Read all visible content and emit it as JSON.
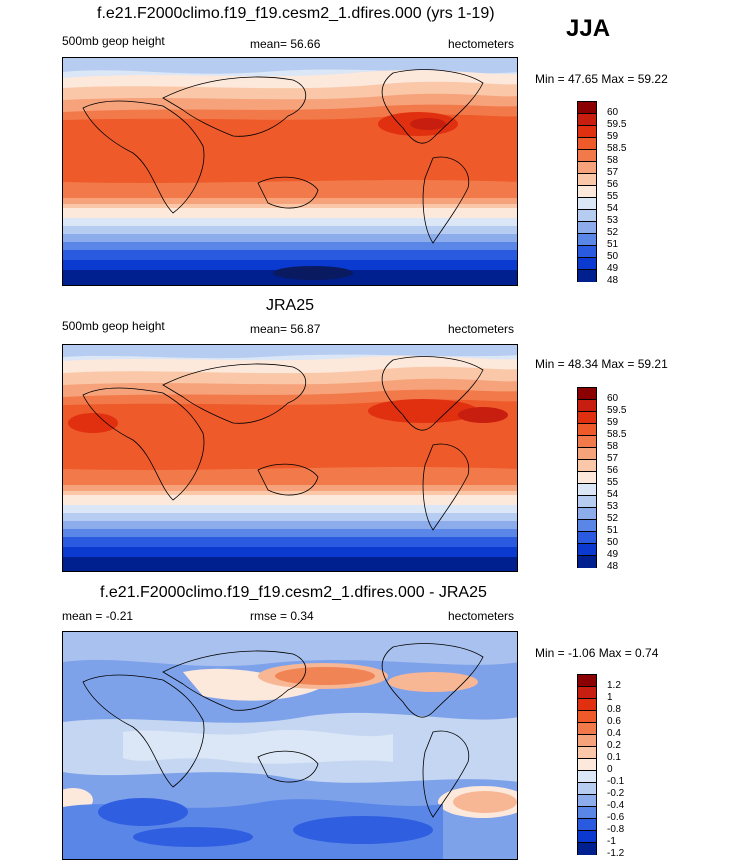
{
  "season": "JJA",
  "panels": [
    {
      "title": "f.e21.F2000climo.f19_f19.cesm2_1.dfires.000 (yrs 1-19)",
      "left_label": "500mb geop height",
      "mean_text": "mean=  56.66",
      "units": "hectometers",
      "minmax": "Min =  47.65 Max =  59.22",
      "levels": [
        "60",
        "59.5",
        "59",
        "58.5",
        "58",
        "57",
        "56",
        "55",
        "54",
        "53",
        "52",
        "51",
        "50",
        "49",
        "48"
      ]
    },
    {
      "title": "JRA25",
      "left_label": "500mb geop height",
      "mean_text": "mean=  56.87",
      "units": "hectometers",
      "minmax": "Min =  48.34 Max =  59.21",
      "levels": [
        "60",
        "59.5",
        "59",
        "58.5",
        "58",
        "57",
        "56",
        "55",
        "54",
        "53",
        "52",
        "51",
        "50",
        "49",
        "48"
      ]
    },
    {
      "title": "f.e21.F2000climo.f19_f19.cesm2_1.dfires.000 - JRA25",
      "left_label": "mean =  -0.21",
      "mean_text": "rmse =   0.34",
      "units": "hectometers",
      "minmax": "Min =  -1.06 Max =   0.74",
      "levels": [
        "1.2",
        "1",
        "0.8",
        "0.6",
        "0.4",
        "0.2",
        "0.1",
        "0",
        "-0.1",
        "-0.2",
        "-0.4",
        "-0.6",
        "-0.8",
        "-1",
        "-1.2"
      ]
    }
  ],
  "chart_data": [
    {
      "type": "heatmap",
      "title": "f.e21.F2000climo.f19_f19.cesm2_1.dfires.000 (yrs 1-19)",
      "variable": "500mb geop height",
      "units": "hectometers",
      "mean": 56.66,
      "min": 47.65,
      "max": 59.22,
      "contour_levels": [
        48,
        49,
        50,
        51,
        52,
        53,
        54,
        55,
        56,
        57,
        58,
        58.5,
        59,
        59.5,
        60
      ]
    },
    {
      "type": "heatmap",
      "title": "JRA25",
      "variable": "500mb geop height",
      "units": "hectometers",
      "mean": 56.87,
      "min": 48.34,
      "max": 59.21,
      "contour_levels": [
        48,
        49,
        50,
        51,
        52,
        53,
        54,
        55,
        56,
        57,
        58,
        58.5,
        59,
        59.5,
        60
      ]
    },
    {
      "type": "heatmap",
      "title": "f.e21.F2000climo.f19_f19.cesm2_1.dfires.000 - JRA25",
      "units": "hectometers",
      "mean": -0.21,
      "rmse": 0.34,
      "min": -1.06,
      "max": 0.74,
      "contour_levels": [
        -1.2,
        -1,
        -0.8,
        -0.6,
        -0.4,
        -0.2,
        -0.1,
        0,
        0.1,
        0.2,
        0.4,
        0.6,
        0.8,
        1,
        1.2
      ]
    }
  ],
  "colors": {
    "colorbar": [
      "#8b0000",
      "#c81e0f",
      "#e03010",
      "#ee5a2a",
      "#f27a4a",
      "#f6a37c",
      "#fac8a8",
      "#fde8dc",
      "#dbe6f6",
      "#b6ccf0",
      "#8cacec",
      "#5a86e8",
      "#2a5ae0",
      "#0a3ad0",
      "#00208f"
    ],
    "diff": {
      "zero": "#fde8dc",
      "light_blue": "#c4d6f2",
      "mid_blue": "#7ea2ea",
      "dark_blue": "#2f5ee0",
      "pos1": "#f7b795",
      "pos2": "#f08454"
    }
  }
}
